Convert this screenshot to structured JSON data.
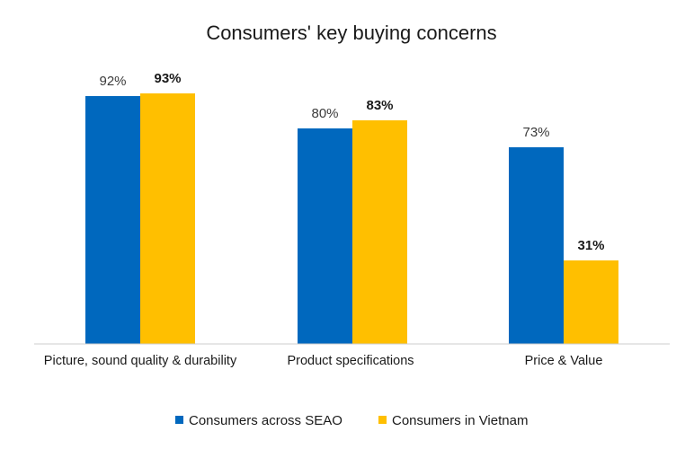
{
  "chart_data": {
    "type": "bar",
    "title": "Consumers' key buying concerns",
    "categories": [
      "Picture, sound quality & durability",
      "Product specifications",
      "Price & Value"
    ],
    "series": [
      {
        "name": "Consumers across SEAO",
        "values": [
          92,
          80,
          73
        ],
        "labels": [
          "92%",
          "80%",
          "73%"
        ],
        "color": "#0068BE"
      },
      {
        "name": "Consumers in Vietnam",
        "values": [
          93,
          83,
          31
        ],
        "labels": [
          "93%",
          "83%",
          "31%"
        ],
        "color": "#FFBF00"
      }
    ],
    "ylim": [
      0,
      100
    ],
    "grid": false,
    "legend": "bottom",
    "axis_color": "#cccccc"
  }
}
